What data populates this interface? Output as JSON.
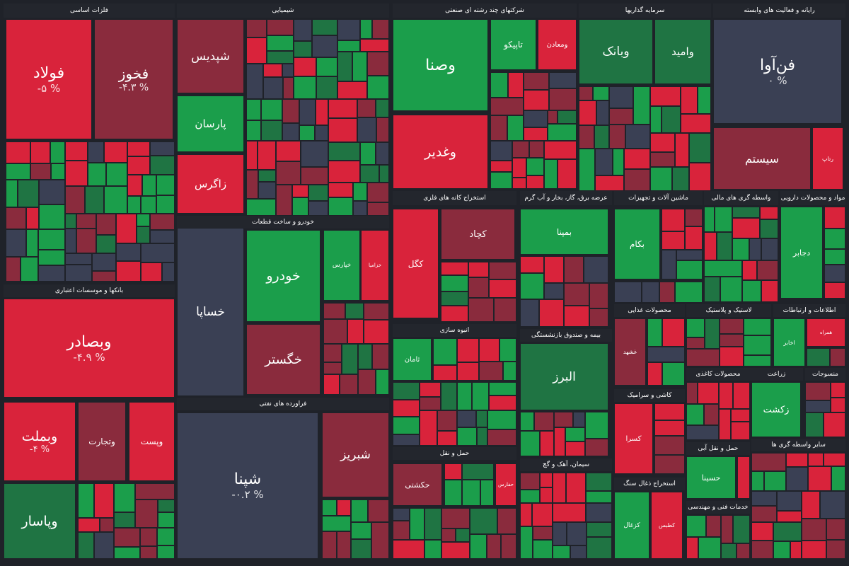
{
  "sectors": [
    {
      "title": "فلزات اساسی",
      "tiles": [
        {
          "symbol": "فولاد",
          "change": "% ۵-"
        },
        {
          "symbol": "فخوز",
          "change": "% ۴.۳-"
        }
      ]
    },
    {
      "title": "شیمیایی",
      "tiles": [
        {
          "symbol": "شپدیس"
        },
        {
          "symbol": "پارسان"
        },
        {
          "symbol": "زاگرس"
        }
      ]
    },
    {
      "title": "شرکتهای چند رشته ای صنعتی",
      "tiles": [
        {
          "symbol": "وصنا"
        },
        {
          "symbol": "وغدیر"
        },
        {
          "symbol": "تاپیکو"
        },
        {
          "symbol": "ومعادن"
        }
      ]
    },
    {
      "title": "سرمایه گذاریها",
      "tiles": [
        {
          "symbol": "وبانک"
        },
        {
          "symbol": "وامید"
        }
      ]
    },
    {
      "title": "رایانه و فعالیت های وابسته",
      "tiles": [
        {
          "symbol": "فن‌آوا",
          "change": "% ۰"
        },
        {
          "symbol": "سیستم"
        },
        {
          "symbol": "رتاپ"
        }
      ]
    },
    {
      "title": "بانکها و موسسات اعتباری",
      "tiles": [
        {
          "symbol": "وبصادر",
          "change": "% ۴.۹-"
        },
        {
          "symbol": "وبملت",
          "change": "% ۴-"
        },
        {
          "symbol": "وتجارت"
        },
        {
          "symbol": "وپست"
        },
        {
          "symbol": "وپاسار"
        }
      ]
    },
    {
      "title": "خودرو و ساخت قطعات",
      "tiles": [
        {
          "symbol": "خساپا"
        },
        {
          "symbol": "خودرو"
        },
        {
          "symbol": "خپارس"
        },
        {
          "symbol": "خزامیا"
        },
        {
          "symbol": "خگستر"
        }
      ]
    },
    {
      "title": "فراورده های نفتی",
      "tiles": [
        {
          "symbol": "شپنا",
          "change": "% ۰.۲-"
        },
        {
          "symbol": "شبریز"
        }
      ]
    },
    {
      "title": "استخراج کانه های فلزی",
      "tiles": [
        {
          "symbol": "کگل"
        },
        {
          "symbol": "کچاد"
        }
      ]
    },
    {
      "title": "عرضه برق، گاز، بخار و آب گرم",
      "tiles": [
        {
          "symbol": "بمپنا"
        }
      ]
    },
    {
      "title": "انبوه سازی",
      "tiles": [
        {
          "symbol": "ثامان"
        }
      ]
    },
    {
      "title": "بیمه و صندوق بازنشستگی",
      "tiles": [
        {
          "symbol": "البرز"
        }
      ]
    },
    {
      "title": "حمل و نقل",
      "tiles": [
        {
          "symbol": "حکشتی"
        },
        {
          "symbol": "حفارس"
        }
      ]
    },
    {
      "title": "سیمان، آهک و گچ",
      "tiles": []
    },
    {
      "title": "ماشین آلات و تجهیزات",
      "tiles": [
        {
          "symbol": "بکام"
        }
      ]
    },
    {
      "title": "واسطه گری های مالی",
      "tiles": []
    },
    {
      "title": "مواد و محصولات دارویی",
      "tiles": [
        {
          "symbol": "دجابر"
        }
      ]
    },
    {
      "title": "محصولات غذایی",
      "tiles": [
        {
          "symbol": "غشهد"
        }
      ]
    },
    {
      "title": "لاستیک و پلاستیک",
      "tiles": []
    },
    {
      "title": "اطلاعات و ارتباطات",
      "tiles": [
        {
          "symbol": "اخابر"
        },
        {
          "symbol": "همراه"
        }
      ]
    },
    {
      "title": "کاشی و سرامیک",
      "tiles": [
        {
          "symbol": "کسرا"
        }
      ]
    },
    {
      "title": "محصولات کاغذی",
      "tiles": []
    },
    {
      "title": "زراعت",
      "tiles": [
        {
          "symbol": "زکشت"
        }
      ]
    },
    {
      "title": "منسوجات",
      "tiles": []
    },
    {
      "title": "حمل و نقل آبی",
      "tiles": [
        {
          "symbol": "حسینا"
        }
      ]
    },
    {
      "title": "استخراج ذغال سنگ",
      "tiles": [
        {
          "symbol": "کزغال"
        },
        {
          "symbol": "کطبس"
        }
      ]
    },
    {
      "title": "خدمات فنی و مهندسی",
      "tiles": []
    },
    {
      "title": "سایر واسطه گری ها",
      "tiles": []
    }
  ]
}
